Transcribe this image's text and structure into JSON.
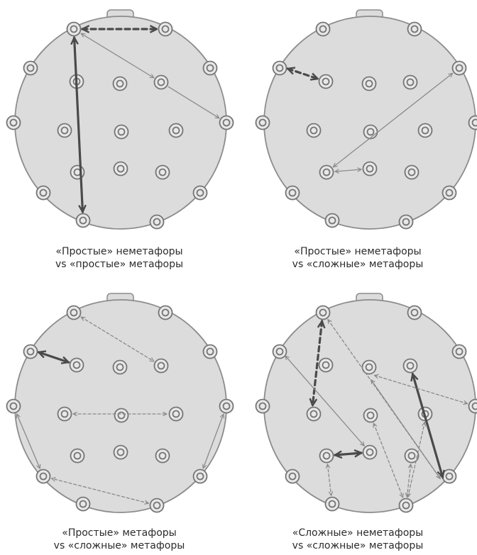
{
  "panels": [
    {
      "caption_line1": "«Простые» неметафоры",
      "caption_line2": "vs «простые» метафоры",
      "connections": [
        {
          "from": "p0",
          "to": "p2",
          "weight": "thick-dashed",
          "heads": "both"
        },
        {
          "from": "p0",
          "to": "p16",
          "weight": "thick-solid",
          "heads": "both"
        },
        {
          "from": "p0",
          "to": "p7",
          "weight": "thin-solid",
          "heads": "both"
        },
        {
          "from": "p7",
          "to": "p8",
          "weight": "thin-solid",
          "heads": "end"
        }
      ]
    },
    {
      "caption_line1": "«Простые» неметафоры",
      "caption_line2": "vs «сложные» метафоры",
      "connections": [
        {
          "from": "p3",
          "to": "p5",
          "weight": "thick-dashed",
          "heads": "both"
        },
        {
          "from": "p4",
          "to": "p12",
          "weight": "thin-solid",
          "heads": "both"
        },
        {
          "from": "p12",
          "to": "p13",
          "weight": "thin-solid",
          "heads": "both"
        }
      ]
    },
    {
      "caption_line1": "«Простые»  метафоры",
      "caption_line2": "vs «сложные» метафоры",
      "connections": [
        {
          "from": "p3",
          "to": "p5",
          "weight": "thick-solid",
          "heads": "both"
        },
        {
          "from": "p1",
          "to": "p7",
          "weight": "thin-dashed",
          "heads": "both"
        },
        {
          "from": "p10",
          "to": "p11",
          "weight": "thin-dashed",
          "heads": "both"
        },
        {
          "from": "p9",
          "to": "p16",
          "weight": "thin-solid",
          "heads": "both"
        },
        {
          "from": "p14",
          "to": "p16",
          "weight": "thin-dashed",
          "heads": "both"
        },
        {
          "from": "p8",
          "to": "p17",
          "weight": "thin-solid",
          "heads": "both"
        }
      ]
    },
    {
      "caption_line1": "«Сложные» неметафоры",
      "caption_line2": "vs «сложные» метафоры",
      "connections": [
        {
          "from": "p1",
          "to": "p10",
          "weight": "thick-dashed",
          "heads": "both"
        },
        {
          "from": "p7",
          "to": "p17",
          "weight": "thick-solid",
          "heads": "both"
        },
        {
          "from": "p12",
          "to": "p13",
          "weight": "thick-solid",
          "heads": "both"
        },
        {
          "from": "p1",
          "to": "p17",
          "weight": "thin-dashed",
          "heads": "both"
        },
        {
          "from": "p3",
          "to": "p13",
          "weight": "thin-solid",
          "heads": "both"
        },
        {
          "from": "p6",
          "to": "p8",
          "weight": "thin-dashed",
          "heads": "both"
        },
        {
          "from": "p6",
          "to": "p17",
          "weight": "thin-solid",
          "heads": "both"
        },
        {
          "from": "p11",
          "to": "p16",
          "weight": "thin-dashed",
          "heads": "both"
        },
        {
          "from": "p12",
          "to": "p15",
          "weight": "thin-dashed",
          "heads": "both"
        },
        {
          "from": "p16",
          "to": "p14",
          "weight": "thin-dashed",
          "heads": "both"
        },
        {
          "from": "p16",
          "to": "p11b",
          "weight": "thin-dashed",
          "heads": "both"
        }
      ]
    }
  ],
  "colors": {
    "head_fill": "#dcdcdc",
    "head_stroke": "#8c8c8c",
    "electrode_stroke": "#757575",
    "electrode_fill": "#e8e8e8",
    "arrow_thin": "#8a8a8a",
    "arrow_thick": "#4a4a4a",
    "caption_text": "#2b2b2b"
  }
}
